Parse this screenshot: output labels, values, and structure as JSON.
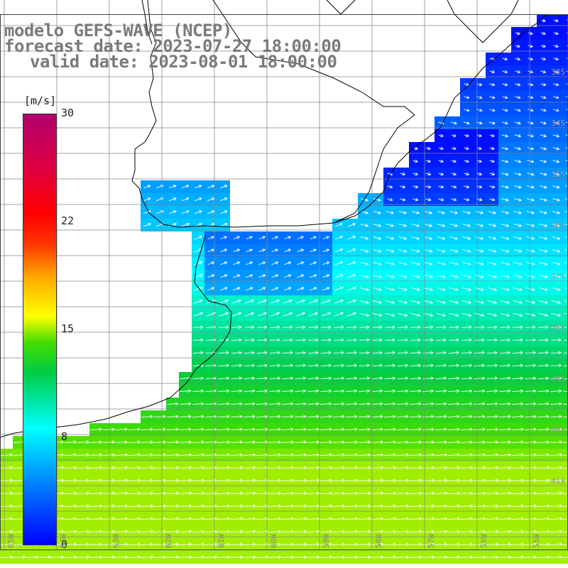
{
  "header": {
    "line1": "modelo GEFS-WAVE (NCEP)",
    "line2": "forecast date: 2023-07-27 18:00:00",
    "line3": "valid date: 2023-08-01 18:00:00"
  },
  "colorbar": {
    "unit": "[m/s]",
    "labels": [
      "30",
      "22",
      "15",
      "8",
      "0"
    ],
    "colors": [
      "#0000ff",
      "#00ffff",
      "#00cc44",
      "#ffff00",
      "#ff0000",
      "#b0006e"
    ]
  },
  "axes": {
    "lat_labels": [
      "33S",
      "34S",
      "35S",
      "36S",
      "37S",
      "38S",
      "39S",
      "40S",
      "41S"
    ],
    "lon_labels": [
      "65W",
      "64W",
      "63W",
      "62W",
      "61W",
      "60W",
      "59W",
      "58W",
      "57W",
      "56W",
      "55W"
    ]
  }
}
